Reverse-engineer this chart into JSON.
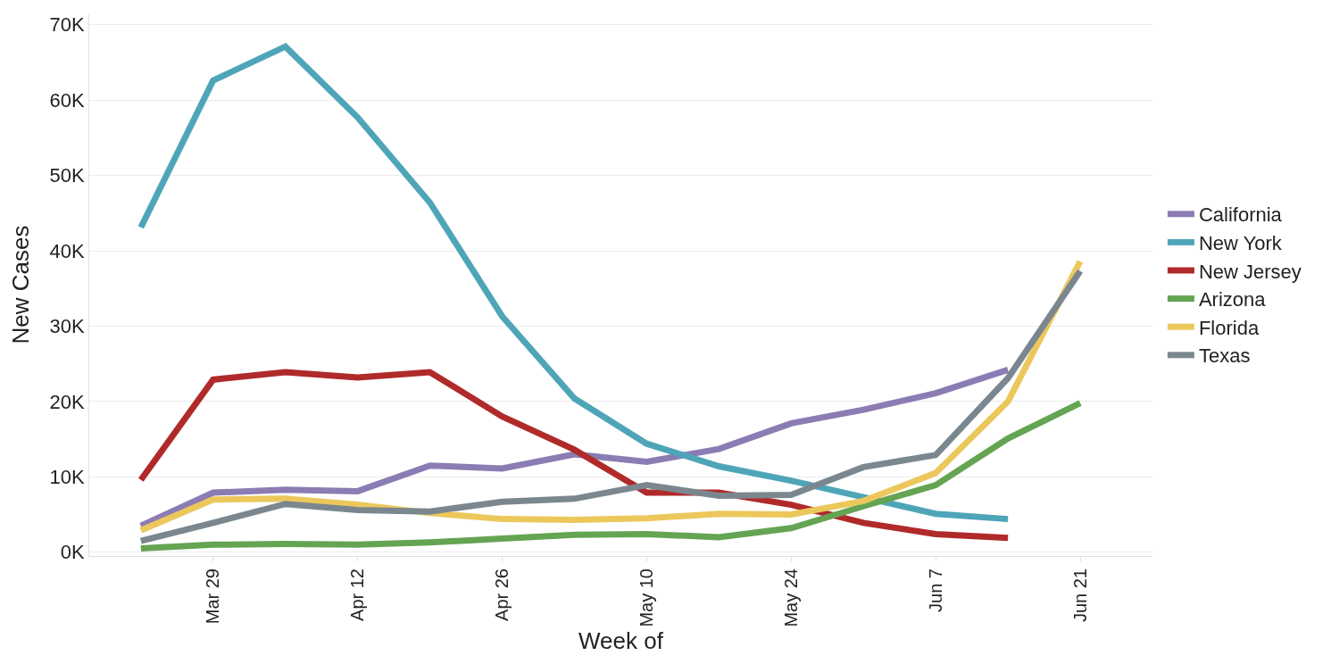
{
  "chart_data": {
    "type": "line",
    "xlabel": "Week of",
    "ylabel": "New Cases",
    "x": [
      "--03-22",
      "--03-29",
      "--04-05",
      "--04-12",
      "--04-19",
      "--04-26",
      "--05-03",
      "--05-10",
      "--05-17",
      "--05-24",
      "--05-31",
      "--06-07",
      "--06-14",
      "--06-21"
    ],
    "series": [
      {
        "name": "California",
        "color": "#8b7cb3",
        "values": [
          3500,
          7900,
          8300,
          8100,
          11500,
          11100,
          13000,
          12000,
          13700,
          17100,
          18900,
          21100,
          24200,
          null
        ]
      },
      {
        "name": "New York",
        "color": "#4fa5b8",
        "values": [
          43100,
          62600,
          67100,
          57700,
          46400,
          31300,
          20400,
          14400,
          11400,
          9500,
          7300,
          5100,
          4400,
          null
        ]
      },
      {
        "name": "New Jersey",
        "color": "#b02a2a",
        "values": [
          9600,
          22900,
          23900,
          23200,
          23900,
          18000,
          13600,
          7900,
          7900,
          6300,
          3900,
          2400,
          1900,
          null
        ]
      },
      {
        "name": "Arizona",
        "color": "#64a452",
        "values": [
          500,
          1000,
          1100,
          1000,
          1300,
          1800,
          2300,
          2400,
          2000,
          3200,
          6100,
          8900,
          15100,
          19800
        ]
      },
      {
        "name": "Florida",
        "color": "#ecc85c",
        "values": [
          2900,
          7000,
          7100,
          6300,
          5200,
          4400,
          4300,
          4500,
          5100,
          5000,
          6800,
          10500,
          20000,
          38600
        ]
      },
      {
        "name": "Texas",
        "color": "#7b878f",
        "values": [
          1500,
          3900,
          6400,
          5600,
          5400,
          6700,
          7100,
          8900,
          7500,
          7600,
          11300,
          12900,
          23100,
          37300
        ]
      }
    ],
    "xlim": [
      "--03-17",
      "--06-28"
    ],
    "xticks": [
      {
        "value": "--03-29",
        "label": "Mar 29"
      },
      {
        "value": "--04-12",
        "label": "Apr 12"
      },
      {
        "value": "--04-26",
        "label": "Apr 26"
      },
      {
        "value": "--05-10",
        "label": "May 10"
      },
      {
        "value": "--05-24",
        "label": "May 24"
      },
      {
        "value": "--06-07",
        "label": "Jun 7"
      },
      {
        "value": "--06-21",
        "label": "Jun 21"
      }
    ],
    "ylim": [
      -500,
      71500
    ],
    "yticks": [
      {
        "value": 0,
        "label": "0K"
      },
      {
        "value": 10000,
        "label": "10K"
      },
      {
        "value": 20000,
        "label": "20K"
      },
      {
        "value": 30000,
        "label": "30K"
      },
      {
        "value": 40000,
        "label": "40K"
      },
      {
        "value": 50000,
        "label": "50K"
      },
      {
        "value": 60000,
        "label": "60K"
      },
      {
        "value": 70000,
        "label": "70K"
      }
    ],
    "grid": "y",
    "legend": "right",
    "marker": "none",
    "line_style": "solid"
  }
}
